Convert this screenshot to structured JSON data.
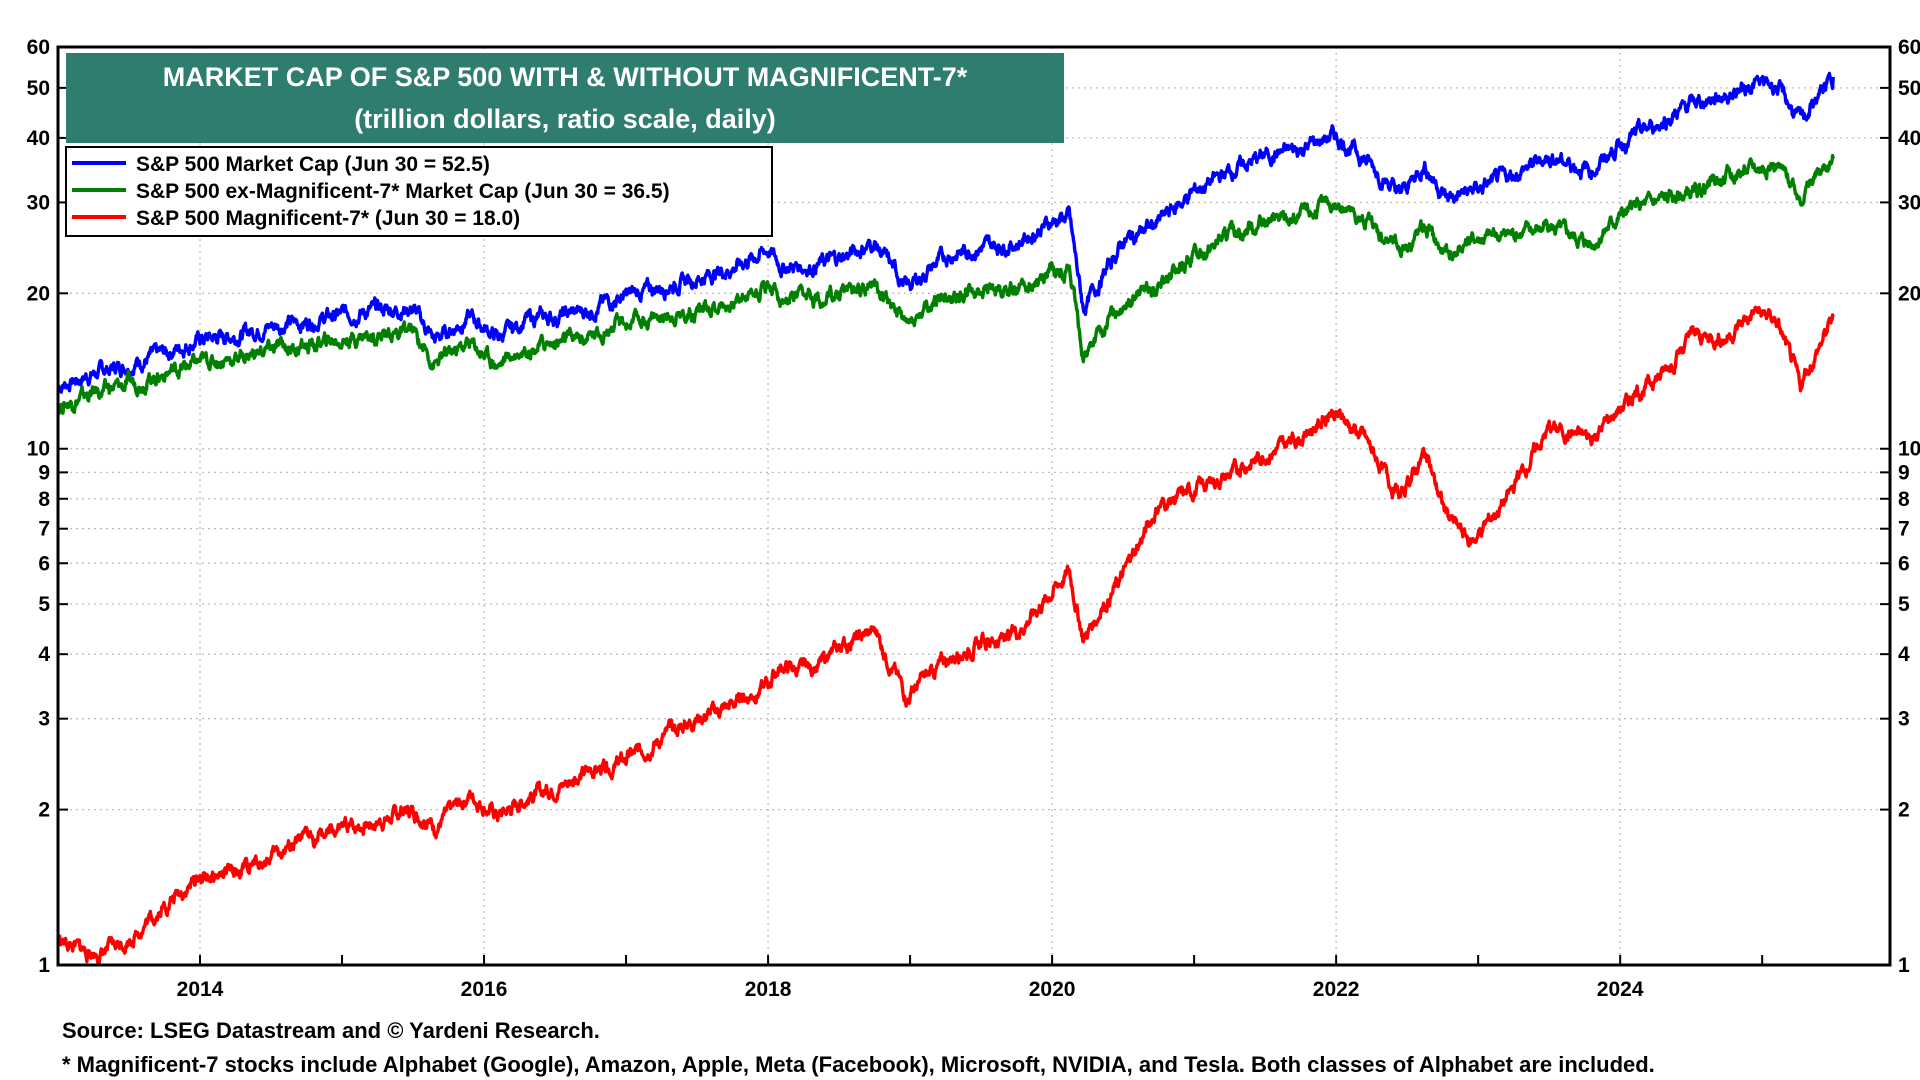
{
  "chart_data": {
    "type": "line",
    "title": "MARKET CAP OF S&P 500 WITH & WITHOUT MAGNIFICENT-7*",
    "subtitle": "(trillion dollars, ratio scale, daily)",
    "xlabel": "",
    "ylabel": "",
    "y_scale": "log",
    "ylim": [
      1,
      60
    ],
    "xlim": [
      2013.0,
      2025.9
    ],
    "y_ticks": [
      1,
      2,
      3,
      4,
      5,
      6,
      7,
      8,
      9,
      10,
      20,
      30,
      40,
      50,
      60
    ],
    "y_tick_labels": [
      "1",
      "2",
      "3",
      "4",
      "5",
      "6",
      "7",
      "8",
      "9",
      "10",
      "20",
      "30",
      "40",
      "50",
      "60"
    ],
    "x_ticks": [
      2014,
      2016,
      2018,
      2020,
      2022,
      2024
    ],
    "x_tick_labels": [
      "2014",
      "2016",
      "2018",
      "2020",
      "2022",
      "2024"
    ],
    "grid": true,
    "legend_position": "top-left",
    "series": [
      {
        "name": "S&P 500 Market Cap (Jun 30 = 52.5)",
        "color": "#0000ff",
        "points": [
          [
            2013.0,
            13.2
          ],
          [
            2013.25,
            14.0
          ],
          [
            2013.5,
            14.6
          ],
          [
            2013.75,
            15.3
          ],
          [
            2014.0,
            16.3
          ],
          [
            2014.25,
            16.6
          ],
          [
            2014.5,
            17.3
          ],
          [
            2014.75,
            17.6
          ],
          [
            2015.0,
            18.2
          ],
          [
            2015.25,
            18.6
          ],
          [
            2015.5,
            18.7
          ],
          [
            2015.65,
            16.2
          ],
          [
            2015.9,
            18.0
          ],
          [
            2016.1,
            16.4
          ],
          [
            2016.3,
            17.8
          ],
          [
            2016.5,
            18.0
          ],
          [
            2016.75,
            18.6
          ],
          [
            2016.9,
            19.4
          ],
          [
            2017.25,
            20.6
          ],
          [
            2017.5,
            21.4
          ],
          [
            2017.75,
            22.4
          ],
          [
            2018.0,
            24.3
          ],
          [
            2018.1,
            22.5
          ],
          [
            2018.3,
            22.6
          ],
          [
            2018.5,
            23.4
          ],
          [
            2018.75,
            25.0
          ],
          [
            2018.98,
            20.5
          ],
          [
            2019.25,
            23.6
          ],
          [
            2019.5,
            24.6
          ],
          [
            2019.75,
            25.0
          ],
          [
            2020.0,
            27.6
          ],
          [
            2020.12,
            28.2
          ],
          [
            2020.22,
            18.6
          ],
          [
            2020.5,
            25.2
          ],
          [
            2020.75,
            27.5
          ],
          [
            2021.0,
            31.5
          ],
          [
            2021.25,
            34.5
          ],
          [
            2021.5,
            37.0
          ],
          [
            2021.75,
            38.0
          ],
          [
            2021.98,
            40.5
          ],
          [
            2022.2,
            36.5
          ],
          [
            2022.45,
            31.0
          ],
          [
            2022.62,
            35.5
          ],
          [
            2022.78,
            30.5
          ],
          [
            2022.95,
            31.5
          ],
          [
            2023.2,
            33.5
          ],
          [
            2023.5,
            36.8
          ],
          [
            2023.8,
            34.5
          ],
          [
            2024.0,
            39.0
          ],
          [
            2024.3,
            43.0
          ],
          [
            2024.5,
            46.5
          ],
          [
            2024.75,
            48.5
          ],
          [
            2024.95,
            51.0
          ],
          [
            2025.1,
            50.5
          ],
          [
            2025.27,
            43.0
          ],
          [
            2025.5,
            52.5
          ]
        ]
      },
      {
        "name": "S&P 500 ex-Magnificent-7* Market Cap (Jun 30 = 36.5)",
        "color": "#008000",
        "points": [
          [
            2013.0,
            12.1
          ],
          [
            2013.25,
            12.8
          ],
          [
            2013.5,
            13.3
          ],
          [
            2013.75,
            14.0
          ],
          [
            2014.0,
            14.7
          ],
          [
            2014.25,
            15.0
          ],
          [
            2014.5,
            15.6
          ],
          [
            2014.75,
            15.8
          ],
          [
            2015.0,
            16.3
          ],
          [
            2015.25,
            16.7
          ],
          [
            2015.5,
            16.8
          ],
          [
            2015.65,
            14.6
          ],
          [
            2015.9,
            16.1
          ],
          [
            2016.1,
            14.6
          ],
          [
            2016.3,
            15.8
          ],
          [
            2016.5,
            16.0
          ],
          [
            2016.75,
            16.5
          ],
          [
            2016.9,
            17.2
          ],
          [
            2017.25,
            18.0
          ],
          [
            2017.5,
            18.6
          ],
          [
            2017.75,
            19.2
          ],
          [
            2018.0,
            20.9
          ],
          [
            2018.1,
            19.4
          ],
          [
            2018.3,
            19.4
          ],
          [
            2018.5,
            20.0
          ],
          [
            2018.75,
            21.0
          ],
          [
            2018.98,
            17.4
          ],
          [
            2019.25,
            19.7
          ],
          [
            2019.5,
            20.3
          ],
          [
            2019.75,
            20.5
          ],
          [
            2020.0,
            22.0
          ],
          [
            2020.12,
            22.5
          ],
          [
            2020.22,
            15.0
          ],
          [
            2020.5,
            19.5
          ],
          [
            2020.75,
            20.5
          ],
          [
            2021.0,
            23.5
          ],
          [
            2021.25,
            26.0
          ],
          [
            2021.5,
            27.5
          ],
          [
            2021.75,
            28.0
          ],
          [
            2021.98,
            30.0
          ],
          [
            2022.2,
            27.5
          ],
          [
            2022.45,
            24.5
          ],
          [
            2022.62,
            27.0
          ],
          [
            2022.78,
            23.5
          ],
          [
            2022.95,
            25.5
          ],
          [
            2023.2,
            26.0
          ],
          [
            2023.5,
            27.0
          ],
          [
            2023.8,
            25.0
          ],
          [
            2024.0,
            28.5
          ],
          [
            2024.3,
            30.5
          ],
          [
            2024.5,
            31.0
          ],
          [
            2024.75,
            33.5
          ],
          [
            2024.95,
            35.0
          ],
          [
            2025.1,
            35.5
          ],
          [
            2025.27,
            31.0
          ],
          [
            2025.5,
            36.5
          ]
        ]
      },
      {
        "name": "S&P 500 Magnificent-7* (Jun 30 = 18.0)",
        "color": "#ff0000",
        "points": [
          [
            2013.0,
            1.12
          ],
          [
            2013.15,
            1.07
          ],
          [
            2013.3,
            1.05
          ],
          [
            2013.5,
            1.12
          ],
          [
            2013.75,
            1.3
          ],
          [
            2014.0,
            1.48
          ],
          [
            2014.25,
            1.5
          ],
          [
            2014.5,
            1.62
          ],
          [
            2014.75,
            1.75
          ],
          [
            2015.0,
            1.82
          ],
          [
            2015.25,
            1.9
          ],
          [
            2015.5,
            2.0
          ],
          [
            2015.65,
            1.85
          ],
          [
            2015.9,
            2.15
          ],
          [
            2016.1,
            1.95
          ],
          [
            2016.3,
            2.1
          ],
          [
            2016.5,
            2.2
          ],
          [
            2016.75,
            2.38
          ],
          [
            2016.9,
            2.4
          ],
          [
            2017.25,
            2.75
          ],
          [
            2017.5,
            3.0
          ],
          [
            2017.75,
            3.2
          ],
          [
            2018.0,
            3.5
          ],
          [
            2018.1,
            3.8
          ],
          [
            2018.3,
            3.7
          ],
          [
            2018.5,
            4.1
          ],
          [
            2018.75,
            4.45
          ],
          [
            2018.98,
            3.3
          ],
          [
            2019.25,
            3.9
          ],
          [
            2019.5,
            4.2
          ],
          [
            2019.75,
            4.4
          ],
          [
            2020.0,
            5.3
          ],
          [
            2020.12,
            5.8
          ],
          [
            2020.22,
            4.3
          ],
          [
            2020.5,
            5.7
          ],
          [
            2020.75,
            7.8
          ],
          [
            2021.0,
            8.3
          ],
          [
            2021.25,
            8.9
          ],
          [
            2021.5,
            9.8
          ],
          [
            2021.75,
            10.5
          ],
          [
            2021.98,
            11.8
          ],
          [
            2022.2,
            10.5
          ],
          [
            2022.45,
            8.0
          ],
          [
            2022.62,
            9.8
          ],
          [
            2022.78,
            7.4
          ],
          [
            2022.95,
            6.6
          ],
          [
            2023.2,
            8.0
          ],
          [
            2023.5,
            11.0
          ],
          [
            2023.8,
            10.5
          ],
          [
            2024.0,
            12.0
          ],
          [
            2024.3,
            14.0
          ],
          [
            2024.5,
            16.5
          ],
          [
            2024.75,
            16.5
          ],
          [
            2024.95,
            18.5
          ],
          [
            2025.1,
            17.8
          ],
          [
            2025.27,
            13.2
          ],
          [
            2025.5,
            18.0
          ]
        ]
      }
    ]
  },
  "footer": {
    "source": "Source: LSEG Datastream and © Yardeni Research.",
    "note": "* Magnificent-7 stocks include Alphabet (Google), Amazon, Apple, Meta (Facebook), Microsoft, NVIDIA, and Tesla. Both classes of Alphabet are included."
  }
}
